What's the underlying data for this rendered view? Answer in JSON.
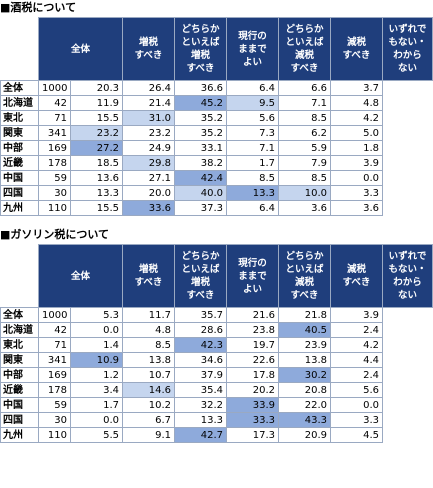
{
  "sections": [
    {
      "title": "■酒税について",
      "header": [
        [
          "全体"
        ],
        [
          "増税",
          "すべき"
        ],
        [
          "どちらか",
          "といえば",
          "増税",
          "すべき"
        ],
        [
          "現行の",
          "ままで",
          "よい"
        ],
        [
          "どちらか",
          "といえば",
          "減税",
          "すべき"
        ],
        [
          "減税",
          "すべき"
        ],
        [
          "いずれで",
          "もない・",
          "わから",
          "ない"
        ]
      ],
      "rows": [
        [
          "全体",
          "1000",
          "20.3",
          "26.4",
          "36.6",
          "6.4",
          "6.6",
          "3.7"
        ],
        [
          "北海道",
          "42",
          "11.9",
          "21.4",
          "45.2",
          "9.5",
          "7.1",
          "4.8"
        ],
        [
          "東北",
          "71",
          "15.5",
          "31.0",
          "35.2",
          "5.6",
          "8.5",
          "4.2"
        ],
        [
          "関東",
          "341",
          "23.2",
          "23.2",
          "35.2",
          "7.3",
          "6.2",
          "5.0"
        ],
        [
          "中部",
          "169",
          "27.2",
          "24.9",
          "33.1",
          "7.1",
          "5.9",
          "1.8"
        ],
        [
          "近畿",
          "178",
          "18.5",
          "29.8",
          "38.2",
          "1.7",
          "7.9",
          "3.9"
        ],
        [
          "中国",
          "59",
          "13.6",
          "27.1",
          "42.4",
          "8.5",
          "8.5",
          "0.0"
        ],
        [
          "四国",
          "30",
          "13.3",
          "20.0",
          "40.0",
          "13.3",
          "10.0",
          "3.3"
        ],
        [
          "九州",
          "110",
          "15.5",
          "33.6",
          "37.3",
          "6.4",
          "3.6",
          "3.6"
        ]
      ]
    },
    {
      "title": "■ガソリン税について",
      "header": [
        [
          "全体"
        ],
        [
          "増税",
          "すべき"
        ],
        [
          "どちらか",
          "といえば",
          "増税",
          "すべき"
        ],
        [
          "現行の",
          "ままで",
          "よい"
        ],
        [
          "どちらか",
          "といえば",
          "減税",
          "すべき"
        ],
        [
          "減税",
          "すべき"
        ],
        [
          "いずれで",
          "もない・",
          "わから",
          "ない"
        ]
      ],
      "rows": [
        [
          "全体",
          "1000",
          "5.3",
          "11.7",
          "35.7",
          "21.6",
          "21.8",
          "3.9"
        ],
        [
          "北海道",
          "42",
          "0.0",
          "4.8",
          "28.6",
          "23.8",
          "40.5",
          "2.4"
        ],
        [
          "東北",
          "71",
          "1.4",
          "8.5",
          "42.3",
          "19.7",
          "23.9",
          "4.2"
        ],
        [
          "関東",
          "341",
          "10.9",
          "13.8",
          "34.6",
          "22.6",
          "13.8",
          "4.4"
        ],
        [
          "中部",
          "169",
          "1.2",
          "10.7",
          "37.9",
          "17.8",
          "30.2",
          "2.4"
        ],
        [
          "近畿",
          "178",
          "3.4",
          "14.6",
          "35.4",
          "20.2",
          "20.8",
          "5.6"
        ],
        [
          "中国",
          "59",
          "1.7",
          "10.2",
          "32.2",
          "33.9",
          "22.0",
          "0.0"
        ],
        [
          "四国",
          "30",
          "0.0",
          "6.7",
          "13.3",
          "33.3",
          "43.3",
          "3.3"
        ],
        [
          "九州",
          "110",
          "5.5",
          "9.1",
          "42.7",
          "17.3",
          "20.9",
          "4.5"
        ]
      ]
    }
  ]
}
